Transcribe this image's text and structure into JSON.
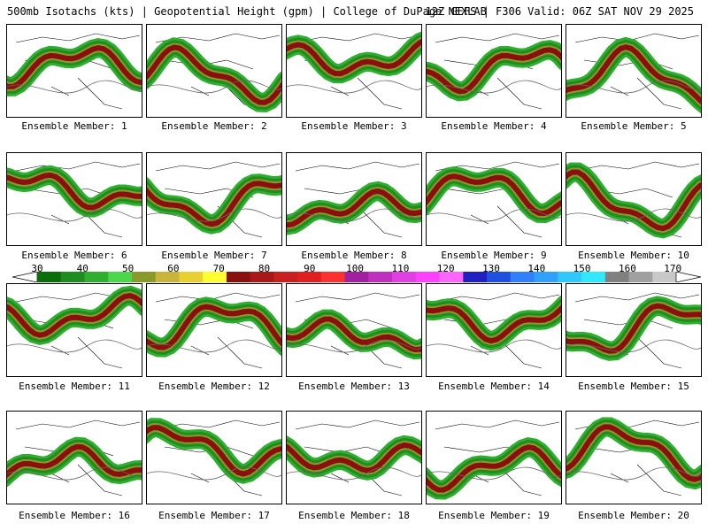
{
  "header": {
    "left": "500mb Isotachs (kts) | Geopotential Height (gpm) | College of DuPage NEXLAB",
    "right": "12Z GEFS | F306 Valid: 06Z SAT NOV 29 2025"
  },
  "members": [
    "Ensemble Member: 1",
    "Ensemble Member: 2",
    "Ensemble Member: 3",
    "Ensemble Member: 4",
    "Ensemble Member: 5",
    "Ensemble Member: 6",
    "Ensemble Member: 7",
    "Ensemble Member: 8",
    "Ensemble Member: 9",
    "Ensemble Member: 10",
    "Ensemble Member: 11",
    "Ensemble Member: 12",
    "Ensemble Member: 13",
    "Ensemble Member: 14",
    "Ensemble Member: 15",
    "Ensemble Member: 16",
    "Ensemble Member: 17",
    "Ensemble Member: 18",
    "Ensemble Member: 19",
    "Ensemble Member: 20"
  ],
  "colorbar": {
    "labels": [
      "30",
      "40",
      "50",
      "60",
      "70",
      "80",
      "90",
      "100",
      "110",
      "120",
      "130",
      "140",
      "150",
      "160",
      "170"
    ],
    "colors": [
      "#0b6e0b",
      "#1e8c1e",
      "#2fae2f",
      "#4cd64c",
      "#8a9a2a",
      "#c8b43a",
      "#e8d030",
      "#ffff30",
      "#8a1010",
      "#a81818",
      "#c82020",
      "#e02020",
      "#ff3030",
      "#a020a0",
      "#c030c0",
      "#e040e0",
      "#ff40ff",
      "#ff66ff",
      "#2020c0",
      "#2050e0",
      "#3080ff",
      "#30a0ff",
      "#30c8ff",
      "#30e8ff",
      "#808080",
      "#a0a0a0",
      "#c8c8c8"
    ]
  }
}
